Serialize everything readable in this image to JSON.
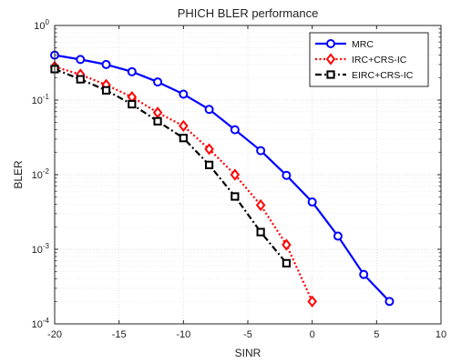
{
  "chart_data": {
    "type": "line",
    "title": "PHICH BLER performance",
    "xlabel": "SINR",
    "ylabel": "BLER",
    "xlim": [
      -20,
      10
    ],
    "ylim": [
      0.0001,
      1
    ],
    "yscale": "log",
    "grid": true,
    "x_ticks": [
      {
        "value": -20,
        "label": "-20"
      },
      {
        "value": -15,
        "label": "-15"
      },
      {
        "value": -10,
        "label": "-10"
      },
      {
        "value": -5,
        "label": "-5"
      },
      {
        "value": 0,
        "label": "0"
      },
      {
        "value": 5,
        "label": "5"
      },
      {
        "value": 10,
        "label": "10"
      }
    ],
    "y_ticks": [
      {
        "value": 1,
        "base": "10",
        "exp": "0"
      },
      {
        "value": 0.1,
        "base": "10",
        "exp": "-1"
      },
      {
        "value": 0.01,
        "base": "10",
        "exp": "-2"
      },
      {
        "value": 0.001,
        "base": "10",
        "exp": "-3"
      },
      {
        "value": 0.0001,
        "base": "10",
        "exp": "-4"
      }
    ],
    "legend_position": "top-right",
    "series": [
      {
        "name": "MRC",
        "color": "#0000ff",
        "line_style": "solid",
        "marker": "circle",
        "x": [
          -20,
          -18,
          -16,
          -14,
          -12,
          -10,
          -8,
          -6,
          -4,
          -2,
          0,
          2,
          4,
          6
        ],
        "y": [
          0.4,
          0.35,
          0.3,
          0.24,
          0.175,
          0.12,
          0.075,
          0.04,
          0.021,
          0.0098,
          0.0043,
          0.0015,
          0.00046,
          0.0002
        ]
      },
      {
        "name": "IRC+CRS-IC",
        "color": "#ff0000",
        "line_style": "dotted",
        "marker": "diamond",
        "x": [
          -20,
          -18,
          -16,
          -14,
          -12,
          -10,
          -8,
          -6,
          -4,
          -2,
          0
        ],
        "y": [
          0.28,
          0.22,
          0.16,
          0.11,
          0.068,
          0.045,
          0.022,
          0.01,
          0.0039,
          0.00115,
          0.0002
        ]
      },
      {
        "name": "EIRC+CRS-IC",
        "color": "#000000",
        "line_style": "dashdot",
        "marker": "square",
        "x": [
          -20,
          -18,
          -16,
          -14,
          -12,
          -10,
          -8,
          -6,
          -4,
          -2
        ],
        "y": [
          0.26,
          0.19,
          0.135,
          0.088,
          0.052,
          0.031,
          0.0135,
          0.0051,
          0.0017,
          0.00065
        ]
      }
    ]
  }
}
